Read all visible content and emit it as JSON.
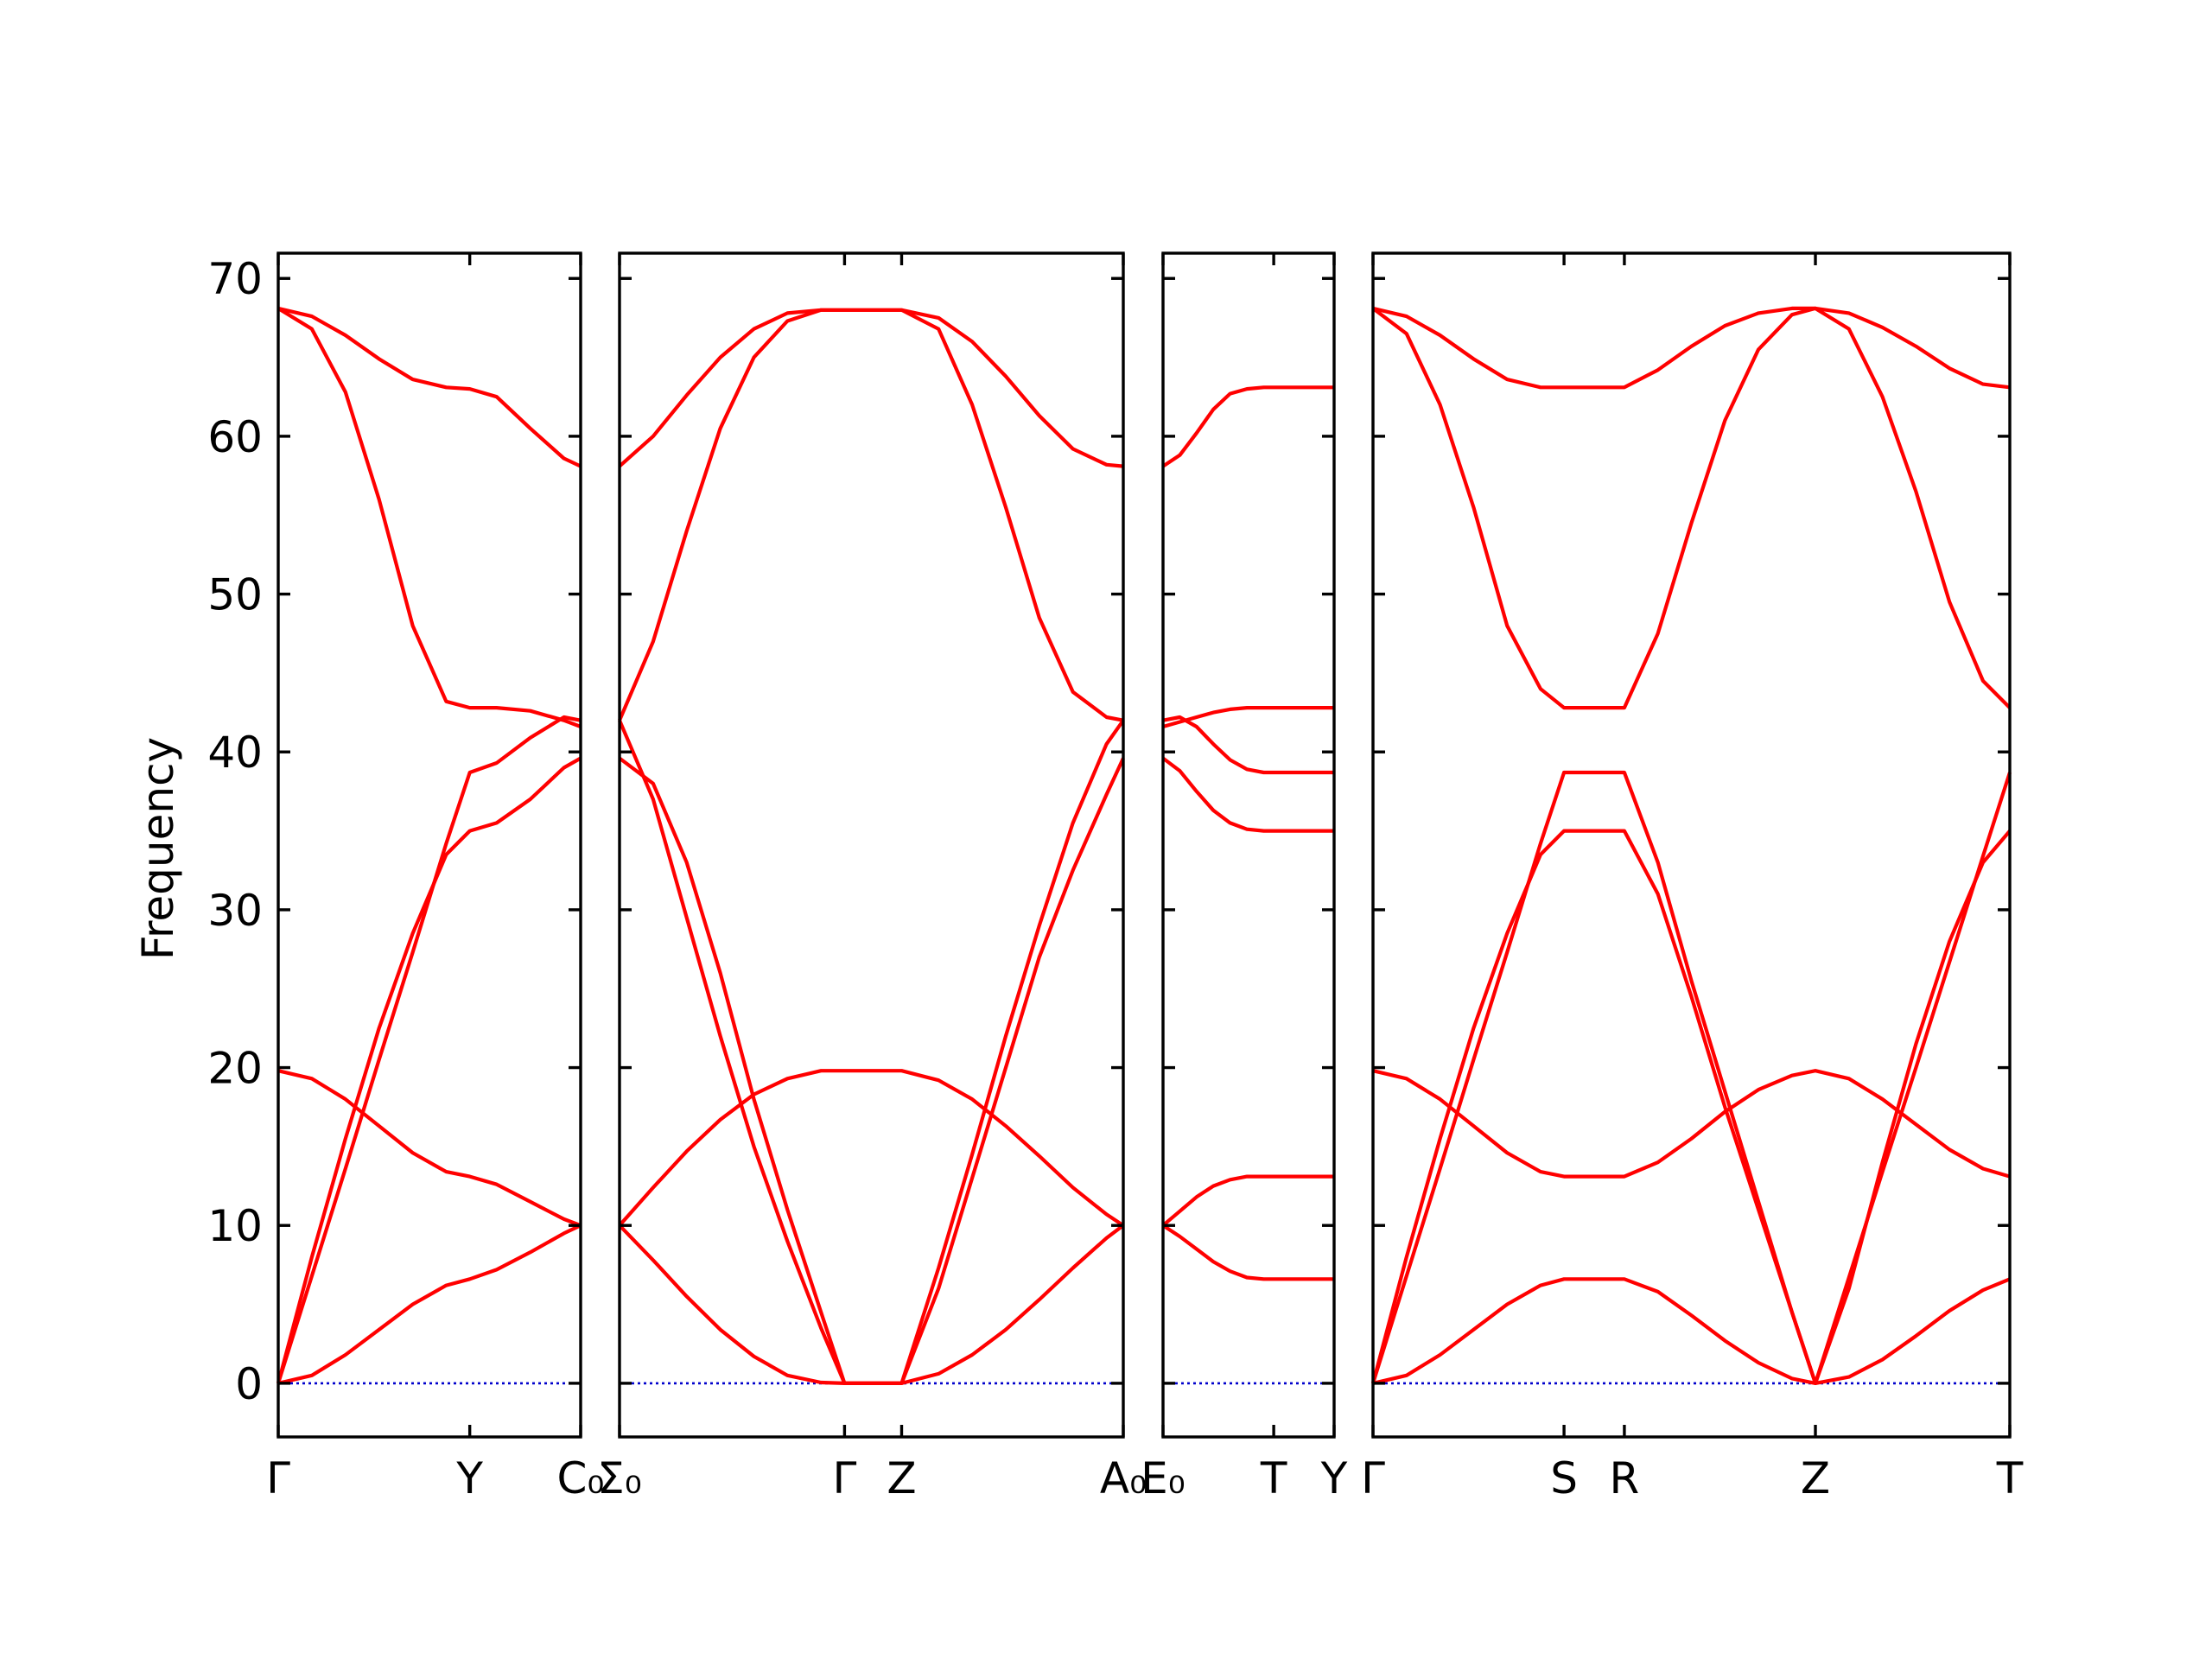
{
  "chart_data": {
    "type": "line",
    "title": "",
    "xlabel": "",
    "ylabel": "Frequency",
    "ylim": [
      -3.4,
      71.6
    ],
    "yticks": [
      0,
      10,
      20,
      30,
      40,
      50,
      60,
      70
    ],
    "grid": false,
    "legend": "none",
    "line_color": "#ff0000",
    "zero_line_color": "#0000cc",
    "panels": [
      {
        "id": "panel-1",
        "xlim": [
          0,
          0.9
        ],
        "ticks": [
          {
            "x": 0.0,
            "label": "Γ"
          },
          {
            "x": 0.57,
            "label": "Y"
          },
          {
            "x": 0.9,
            "label": "C₀"
          }
        ],
        "series": [
          {
            "x": [
              0.0,
              0.1,
              0.2,
              0.3,
              0.4,
              0.5,
              0.57,
              0.65,
              0.75,
              0.85,
              0.9
            ],
            "y": [
              0.0,
              0.5,
              1.8,
              3.4,
              5.0,
              6.2,
              6.6,
              7.2,
              8.3,
              9.5,
              10.0
            ]
          },
          {
            "x": [
              0.0,
              0.1,
              0.2,
              0.3,
              0.4,
              0.5,
              0.57,
              0.65,
              0.75,
              0.85,
              0.9
            ],
            "y": [
              19.8,
              19.3,
              18.0,
              16.3,
              14.6,
              13.4,
              13.1,
              12.6,
              11.5,
              10.4,
              10.0
            ]
          },
          {
            "x": [
              0.0,
              0.1,
              0.2,
              0.3,
              0.4,
              0.5,
              0.57,
              0.65,
              0.75,
              0.85,
              0.9
            ],
            "y": [
              0.0,
              8.0,
              15.5,
              22.5,
              28.5,
              33.5,
              35.0,
              35.5,
              37.0,
              39.0,
              39.6
            ]
          },
          {
            "x": [
              0.0,
              0.1,
              0.2,
              0.3,
              0.4,
              0.5,
              0.57,
              0.65,
              0.75,
              0.85,
              0.9
            ],
            "y": [
              0.0,
              6.8,
              13.6,
              20.5,
              27.3,
              34.2,
              38.7,
              39.3,
              40.9,
              42.2,
              42.0
            ]
          },
          {
            "x": [
              0.0,
              0.1,
              0.2,
              0.3,
              0.4,
              0.5,
              0.57,
              0.65,
              0.75,
              0.85,
              0.9
            ],
            "y": [
              68.1,
              66.8,
              62.8,
              56.0,
              48.0,
              43.2,
              42.8,
              42.8,
              42.6,
              42.0,
              41.6
            ]
          },
          {
            "x": [
              0.0,
              0.1,
              0.2,
              0.3,
              0.4,
              0.5,
              0.57,
              0.65,
              0.75,
              0.85,
              0.9
            ],
            "y": [
              68.1,
              67.6,
              66.4,
              64.9,
              63.6,
              63.1,
              63.0,
              62.5,
              60.5,
              58.6,
              58.1
            ]
          }
        ]
      },
      {
        "id": "panel-2",
        "xlim": [
          0,
          1.5
        ],
        "ticks": [
          {
            "x": 0.0,
            "label": "Σ₀"
          },
          {
            "x": 0.67,
            "label": "Γ"
          },
          {
            "x": 0.84,
            "label": "Z"
          },
          {
            "x": 1.5,
            "label": "A₀"
          }
        ],
        "series": [
          {
            "x": [
              0.0,
              0.1,
              0.2,
              0.3,
              0.4,
              0.5,
              0.6,
              0.67,
              0.84,
              0.95,
              1.05,
              1.15,
              1.25,
              1.35,
              1.45,
              1.5
            ],
            "y": [
              10.0,
              7.8,
              5.5,
              3.4,
              1.7,
              0.5,
              0.05,
              0.0,
              0.0,
              0.6,
              1.8,
              3.4,
              5.3,
              7.3,
              9.2,
              10.0
            ]
          },
          {
            "x": [
              0.0,
              0.1,
              0.2,
              0.3,
              0.4,
              0.5,
              0.6,
              0.67,
              0.84,
              0.95,
              1.05,
              1.15,
              1.25,
              1.35,
              1.45,
              1.5
            ],
            "y": [
              10.0,
              12.4,
              14.7,
              16.7,
              18.3,
              19.3,
              19.8,
              19.8,
              19.8,
              19.2,
              18.0,
              16.3,
              14.4,
              12.4,
              10.7,
              10.0
            ]
          },
          {
            "x": [
              0.0,
              0.1,
              0.2,
              0.3,
              0.4,
              0.5,
              0.6,
              0.67,
              0.84,
              0.95,
              1.05,
              1.15,
              1.25,
              1.35,
              1.45,
              1.5
            ],
            "y": [
              39.6,
              38.0,
              33.0,
              26.0,
              18.0,
              11.0,
              4.5,
              0.0,
              0.0,
              6.0,
              13.0,
              20.0,
              27.0,
              32.5,
              37.3,
              39.6
            ]
          },
          {
            "x": [
              0.0,
              0.1,
              0.2,
              0.3,
              0.4,
              0.5,
              0.6,
              0.67,
              0.84,
              0.95,
              1.05,
              1.15,
              1.25,
              1.35,
              1.45,
              1.5
            ],
            "y": [
              42.0,
              37.0,
              29.5,
              22.0,
              15.0,
              9.0,
              3.5,
              0.0,
              0.0,
              7.3,
              14.5,
              22.0,
              29.0,
              35.5,
              40.5,
              42.0
            ]
          },
          {
            "x": [
              0.0,
              0.1,
              0.2,
              0.3,
              0.4,
              0.5,
              0.6,
              0.67,
              0.84,
              0.95,
              1.05,
              1.15,
              1.25,
              1.35,
              1.45,
              1.5
            ],
            "y": [
              42.0,
              47.0,
              54.0,
              60.5,
              65.0,
              67.3,
              68.0,
              68.0,
              68.0,
              66.8,
              62.0,
              55.5,
              48.5,
              43.8,
              42.2,
              42.0
            ]
          },
          {
            "x": [
              0.0,
              0.1,
              0.2,
              0.3,
              0.4,
              0.5,
              0.6,
              0.67,
              0.84,
              0.95,
              1.05,
              1.15,
              1.25,
              1.35,
              1.45,
              1.5
            ],
            "y": [
              58.1,
              60.0,
              62.6,
              65.0,
              66.8,
              67.8,
              68.0,
              68.0,
              68.0,
              67.5,
              66.0,
              63.8,
              61.3,
              59.2,
              58.2,
              58.1
            ]
          }
        ]
      },
      {
        "id": "panel-3",
        "xlim": [
          0,
          0.51
        ],
        "ticks": [
          {
            "x": 0.0,
            "label": "E₀"
          },
          {
            "x": 0.33,
            "label": "T"
          },
          {
            "x": 0.51,
            "label": "Y"
          }
        ],
        "series": [
          {
            "x": [
              0.0,
              0.05,
              0.1,
              0.15,
              0.2,
              0.25,
              0.3,
              0.33,
              0.4,
              0.51
            ],
            "y": [
              10.0,
              9.3,
              8.5,
              7.7,
              7.1,
              6.7,
              6.6,
              6.6,
              6.6,
              6.6
            ]
          },
          {
            "x": [
              0.0,
              0.05,
              0.1,
              0.15,
              0.2,
              0.25,
              0.3,
              0.33,
              0.4,
              0.51
            ],
            "y": [
              10.0,
              10.9,
              11.8,
              12.5,
              12.9,
              13.1,
              13.1,
              13.1,
              13.1,
              13.1
            ]
          },
          {
            "x": [
              0.0,
              0.05,
              0.1,
              0.15,
              0.2,
              0.25,
              0.3,
              0.33,
              0.4,
              0.51
            ],
            "y": [
              39.6,
              38.8,
              37.5,
              36.3,
              35.5,
              35.1,
              35.0,
              35.0,
              35.0,
              35.0
            ]
          },
          {
            "x": [
              0.0,
              0.05,
              0.1,
              0.15,
              0.2,
              0.25,
              0.3,
              0.33,
              0.4,
              0.51
            ],
            "y": [
              42.0,
              42.2,
              41.6,
              40.5,
              39.5,
              38.9,
              38.7,
              38.7,
              38.7,
              38.7
            ]
          },
          {
            "x": [
              0.0,
              0.05,
              0.1,
              0.15,
              0.2,
              0.25,
              0.3,
              0.33,
              0.4,
              0.51
            ],
            "y": [
              41.6,
              41.9,
              42.2,
              42.5,
              42.7,
              42.8,
              42.8,
              42.8,
              42.8,
              42.8
            ]
          },
          {
            "x": [
              0.0,
              0.05,
              0.1,
              0.15,
              0.2,
              0.25,
              0.3,
              0.33,
              0.4,
              0.51
            ],
            "y": [
              58.1,
              58.8,
              60.2,
              61.7,
              62.7,
              63.0,
              63.1,
              63.1,
              63.1,
              63.1
            ]
          }
        ]
      },
      {
        "id": "panel-4",
        "xlim": [
          0,
          1.9
        ],
        "ticks": [
          {
            "x": 0.0,
            "label": "Γ"
          },
          {
            "x": 0.57,
            "label": "S"
          },
          {
            "x": 0.75,
            "label": "R"
          },
          {
            "x": 1.32,
            "label": "Z"
          },
          {
            "x": 1.9,
            "label": "T"
          }
        ],
        "series": [
          {
            "x": [
              0.0,
              0.1,
              0.2,
              0.3,
              0.4,
              0.5,
              0.57,
              0.75,
              0.85,
              0.95,
              1.05,
              1.15,
              1.25,
              1.32,
              1.42,
              1.52,
              1.62,
              1.72,
              1.82,
              1.9
            ],
            "y": [
              0.0,
              0.5,
              1.8,
              3.4,
              5.0,
              6.2,
              6.6,
              6.6,
              5.8,
              4.3,
              2.7,
              1.3,
              0.3,
              0.0,
              0.4,
              1.5,
              3.0,
              4.6,
              5.9,
              6.6
            ]
          },
          {
            "x": [
              0.0,
              0.1,
              0.2,
              0.3,
              0.4,
              0.5,
              0.57,
              0.75,
              0.85,
              0.95,
              1.05,
              1.15,
              1.25,
              1.32,
              1.42,
              1.52,
              1.62,
              1.72,
              1.82,
              1.9
            ],
            "y": [
              19.8,
              19.3,
              18.0,
              16.3,
              14.6,
              13.4,
              13.1,
              13.1,
              14.0,
              15.5,
              17.2,
              18.6,
              19.5,
              19.8,
              19.3,
              18.0,
              16.4,
              14.8,
              13.6,
              13.1
            ]
          },
          {
            "x": [
              0.0,
              0.1,
              0.2,
              0.3,
              0.4,
              0.5,
              0.57,
              0.75,
              0.85,
              0.95,
              1.05,
              1.15,
              1.25,
              1.32,
              1.42,
              1.52,
              1.62,
              1.72,
              1.82,
              1.9
            ],
            "y": [
              0.0,
              8.0,
              15.5,
              22.5,
              28.5,
              33.5,
              35.0,
              35.0,
              31.0,
              24.5,
              17.5,
              11.0,
              4.5,
              0.0,
              6.0,
              14.0,
              21.5,
              28.0,
              33.0,
              35.0
            ]
          },
          {
            "x": [
              0.0,
              0.1,
              0.2,
              0.3,
              0.4,
              0.5,
              0.57,
              0.75,
              0.85,
              0.95,
              1.05,
              1.15,
              1.25,
              1.32,
              1.42,
              1.52,
              1.62,
              1.72,
              1.82,
              1.9
            ],
            "y": [
              0.0,
              6.8,
              13.6,
              20.5,
              27.3,
              34.2,
              38.7,
              38.7,
              33.0,
              25.5,
              18.5,
              11.5,
              4.5,
              0.0,
              6.7,
              13.4,
              20.0,
              26.7,
              33.4,
              38.7
            ]
          },
          {
            "x": [
              0.0,
              0.1,
              0.2,
              0.3,
              0.4,
              0.5,
              0.57,
              0.75,
              0.85,
              0.95,
              1.05,
              1.15,
              1.25,
              1.32,
              1.42,
              1.52,
              1.62,
              1.72,
              1.82,
              1.9
            ],
            "y": [
              68.1,
              66.5,
              62.0,
              55.5,
              48.0,
              44.0,
              42.8,
              42.8,
              47.5,
              54.5,
              61.0,
              65.5,
              67.7,
              68.1,
              66.8,
              62.5,
              56.5,
              49.5,
              44.5,
              42.8
            ]
          },
          {
            "x": [
              0.0,
              0.1,
              0.2,
              0.3,
              0.4,
              0.5,
              0.57,
              0.75,
              0.85,
              0.95,
              1.05,
              1.15,
              1.25,
              1.32,
              1.42,
              1.52,
              1.62,
              1.72,
              1.82,
              1.9
            ],
            "y": [
              68.1,
              67.6,
              66.4,
              64.9,
              63.6,
              63.1,
              63.1,
              63.1,
              64.2,
              65.7,
              67.0,
              67.8,
              68.1,
              68.1,
              67.8,
              66.9,
              65.7,
              64.3,
              63.3,
              63.1
            ]
          }
        ]
      }
    ]
  }
}
